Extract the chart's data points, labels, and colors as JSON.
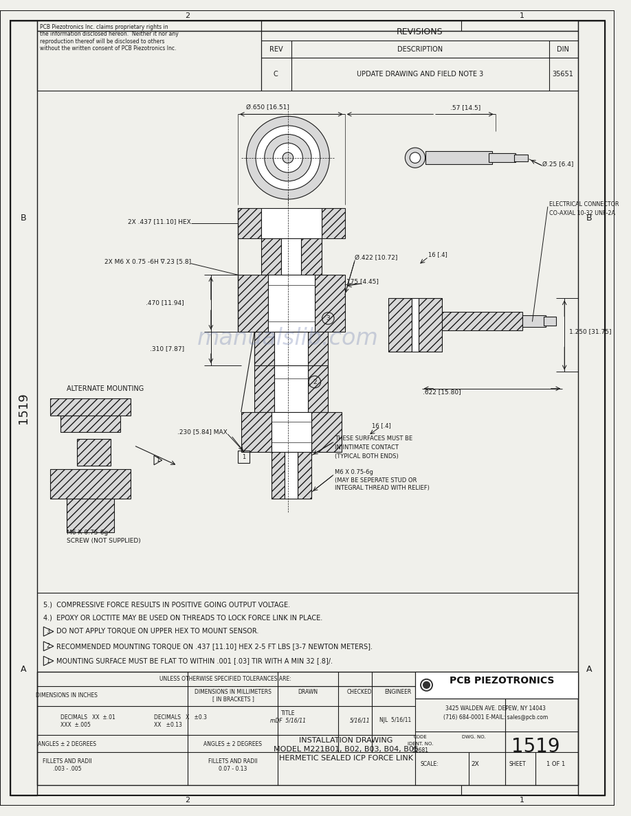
{
  "page_bg": "#f0f0eb",
  "border_color": "#222222",
  "title_line1": "INSTALLATION DRAWING",
  "title_line2": "MODEL M221B01, B02, B03, B04, B05",
  "title_line3": "HERMETIC SEALED ICP FORCE LINK",
  "dwg_no": "1519",
  "scale": "2X",
  "sheet": "1 OF 1",
  "code": "52681",
  "company": "PCB PIEZOTRONICS",
  "address": "3425 WALDEN AVE. DEPEW, NY 14043",
  "phone": "(716) 684-0001 E-MAIL: sales@pcb.com",
  "revisions_header": "REVISIONS",
  "rev_col": "REV",
  "desc_col": "DESCRIPTION",
  "din_col": "DIN",
  "rev_c": "C",
  "rev_desc": "UPDATE DRAWING AND FIELD NOTE 3",
  "rev_din": "35651",
  "proprietary_text": "PCB Piezotronics Inc. claims proprietary rights in\nthe information disclosed hereon.  Neither it nor any\nreproduction thereof will be disclosed to others\nwithout the written consent of PCB Piezotronics Inc.",
  "tolerances_header": "UNLESS OTHERWISE SPECIFIED TOLERANCES ARE:",
  "dim_inches": "DIMENSIONS IN INCHES",
  "dim_mm": "DIMENSIONS IN MILLIMETERS\n[ IN BRACKETS ]",
  "dec_xx": "DECIMALS   XX  ±.01",
  "dec_xxx": "XXX  ±.005",
  "dec_mm_x": "DECIMALS   X   ±0.3",
  "dec_mm_xx": "XX   ±0.13",
  "angles_in": "ANGLES ± 2 DEGREES",
  "angles_mm": "ANGLES ± 2 DEGREES",
  "fillets_in": "FILLETS AND RADII\n.003 - .005",
  "fillets_mm": "FILLETS AND RADII\n0.07 - 0.13",
  "note5": "5.)  COMPRESSIVE FORCE RESULTS IN POSITIVE GOING OUTPUT VOLTAGE.",
  "note4": "4.)  EPOXY OR LOCTITE MAY BE USED ON THREADS TO LOCK FORCE LINK IN PLACE.",
  "note3": "DO NOT APPLY TORQUE ON UPPER HEX TO MOUNT SENSOR.",
  "note2": "RECOMMENDED MOUNTING TORQUE ON .437 [11.10] HEX 2-5 FT LBS [3-7 NEWTON METERS].",
  "note1": "MOUNTING SURFACE MUST BE FLAT TO WITHIN .001 [.03] TIR WITH A MIN 32 [.8]/.",
  "alternate_mounting": "ALTERNATE MOUNTING",
  "watermark": "manualslib.com",
  "hatch_color": "#d8d8d8",
  "line_color": "#1a1a1a"
}
